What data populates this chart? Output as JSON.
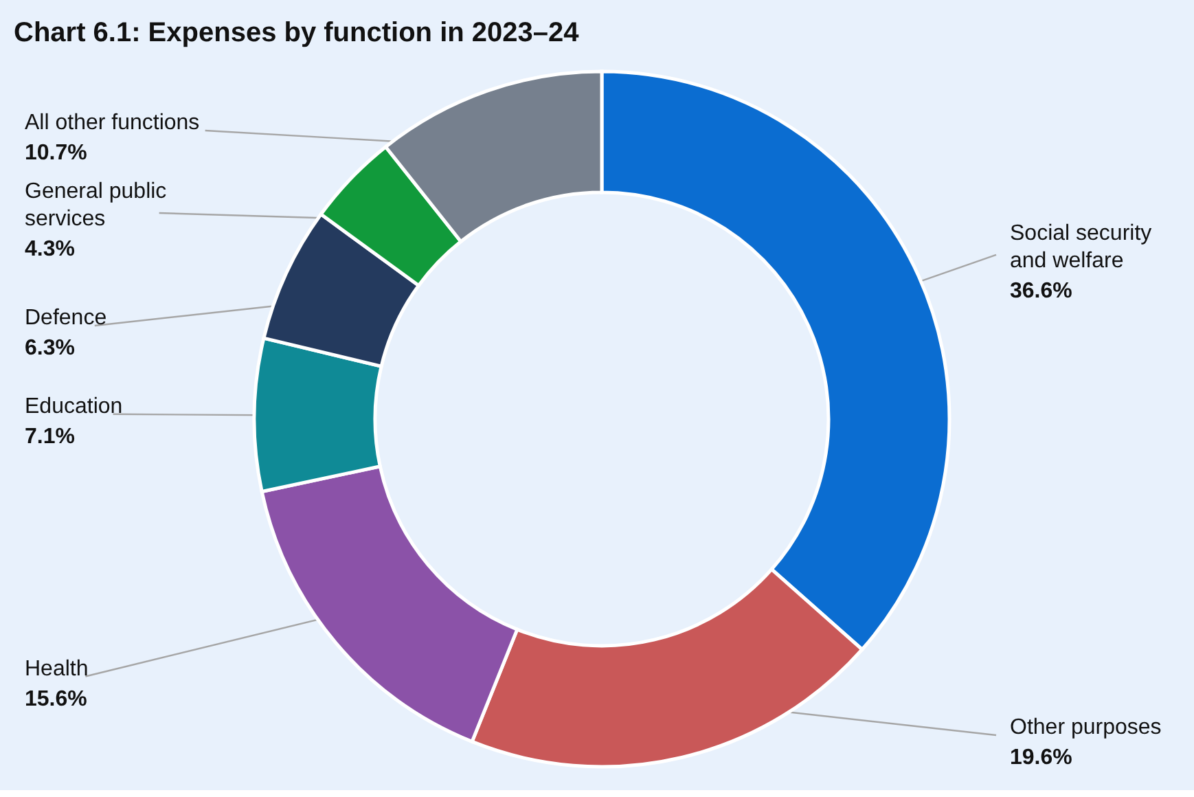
{
  "chart_data": {
    "type": "donut",
    "title": "Chart 6.1: Expenses by function in 2023–24",
    "categories": [
      "Social security\nand welfare",
      "Other purposes",
      "Health",
      "Education",
      "Defence",
      "General public\nservices",
      "All other functions"
    ],
    "values": [
      36.6,
      19.6,
      15.6,
      7.1,
      6.3,
      4.3,
      10.7
    ],
    "colors": [
      "#0b6dd1",
      "#c95858",
      "#8b52a8",
      "#0f8a96",
      "#243a5e",
      "#119a3b",
      "#76808e"
    ],
    "value_labels": [
      "36.6%",
      "19.6%",
      "15.6%",
      "7.1%",
      "6.3%",
      "4.3%",
      "10.7%"
    ]
  }
}
